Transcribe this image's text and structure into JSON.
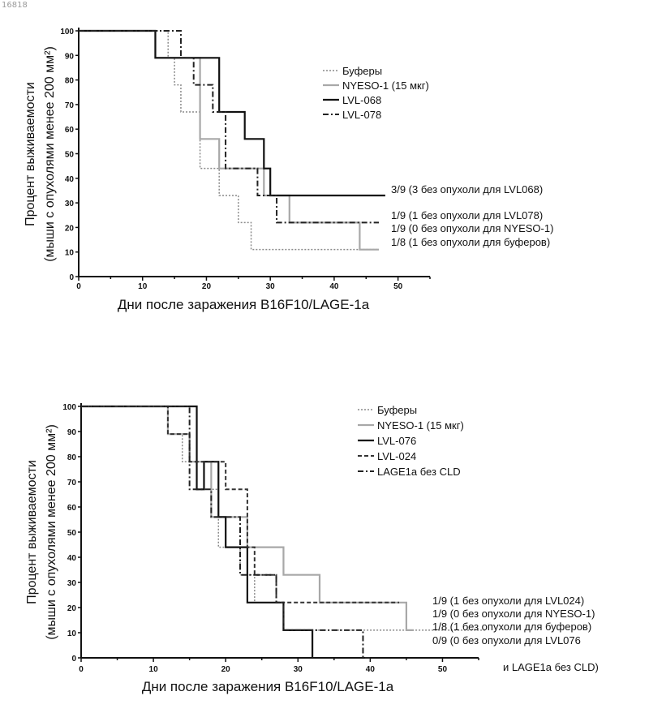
{
  "page_id": "16818",
  "colors": {
    "ink": "#111111",
    "gray": "#8a8a8a",
    "light": "#a8a8a8"
  },
  "chart_data": [
    {
      "type": "line",
      "step": true,
      "title": "",
      "xlabel": "Дни после заражения B16F10/LAGE-1a",
      "ylabel": "Процент выживаемости",
      "ylabel2": "(мыши с опухолями менее 200 мм²)",
      "xlim": [
        0,
        55
      ],
      "ylim": [
        0,
        100
      ],
      "xticks": [
        "0",
        "10",
        "20",
        "30",
        "40",
        "50"
      ],
      "yticks": [
        "0",
        "10",
        "20",
        "30",
        "40",
        "50",
        "60",
        "70",
        "80",
        "90",
        "100"
      ],
      "legend_position": "top-right",
      "series": [
        {
          "name": "Буферы",
          "style": "dotted",
          "color": "#8a8a8a",
          "x": [
            0,
            14,
            15,
            16,
            19,
            22,
            25,
            27,
            47
          ],
          "y": [
            100,
            89,
            78,
            67,
            44,
            33,
            22,
            11,
            11
          ]
        },
        {
          "name": "NYESO-1 (15 мкг)",
          "style": "solid-gray",
          "color": "#a8a8a8",
          "x": [
            0,
            12,
            19,
            22,
            29,
            33,
            44,
            47
          ],
          "y": [
            100,
            89,
            56,
            44,
            33,
            22,
            11,
            11
          ]
        },
        {
          "name": "LVL-068",
          "style": "solid",
          "color": "#111111",
          "x": [
            0,
            12,
            22,
            26,
            29,
            30,
            48
          ],
          "y": [
            100,
            89,
            67,
            56,
            44,
            33,
            33
          ]
        },
        {
          "name": "LVL-078",
          "style": "dashdot",
          "color": "#333333",
          "x": [
            0,
            16,
            18,
            21,
            23,
            28,
            31,
            47
          ],
          "y": [
            100,
            89,
            78,
            67,
            44,
            33,
            22,
            22
          ]
        }
      ],
      "end_labels": [
        "3/9 (3 без опухоли для LVL068)",
        "1/9 (1 без опухоли для LVL078)",
        "1/9 (0 без опухоли для NYESO-1)",
        "1/8 (1 без опухоли для буферов)"
      ]
    },
    {
      "type": "line",
      "step": true,
      "title": "",
      "xlabel": "Дни после заражения B16F10/LAGE-1a",
      "ylabel": "Процент выживаемости",
      "ylabel2": "(мыши с опухолями менее 200 мм²)",
      "xlim": [
        0,
        55
      ],
      "ylim": [
        0,
        100
      ],
      "xticks": [
        "0",
        "10",
        "20",
        "30",
        "40",
        "50"
      ],
      "yticks": [
        "0",
        "10",
        "20",
        "30",
        "40",
        "50",
        "60",
        "70",
        "80",
        "90",
        "100"
      ],
      "legend_position": "top-right",
      "series": [
        {
          "name": "Буферы",
          "style": "dotted",
          "color": "#8a8a8a",
          "x": [
            0,
            12,
            14,
            17,
            19,
            22,
            24,
            28,
            56
          ],
          "y": [
            100,
            89,
            78,
            67,
            44,
            33,
            22,
            11,
            11
          ]
        },
        {
          "name": "NYESO-1 (15 мкг)",
          "style": "solid-gray",
          "color": "#a8a8a8",
          "x": [
            0,
            12,
            15,
            18,
            23,
            28,
            33,
            45,
            46
          ],
          "y": [
            100,
            89,
            78,
            56,
            44,
            33,
            22,
            11,
            11
          ]
        },
        {
          "name": "LVL-076",
          "style": "solid",
          "color": "#111111",
          "x": [
            0,
            16,
            17,
            19,
            20,
            23,
            27,
            28,
            32
          ],
          "y": [
            100,
            67,
            78,
            56,
            44,
            22,
            22,
            11,
            0
          ]
        },
        {
          "name": "LVL-024",
          "style": "dashed",
          "color": "#333333",
          "x": [
            0,
            12,
            15,
            20,
            23,
            24,
            27,
            44
          ],
          "y": [
            100,
            89,
            78,
            67,
            44,
            33,
            22,
            22
          ]
        },
        {
          "name": "LAGE1a без CLD",
          "style": "dashdot",
          "color": "#222222",
          "x": [
            0,
            15,
            18,
            22,
            27,
            28,
            39,
            40
          ],
          "y": [
            100,
            67,
            56,
            33,
            22,
            11,
            0,
            0
          ]
        }
      ],
      "end_labels": [
        "1/9 (1 без опухоли для LVL024)",
        "1/9 (0 без опухоли для NYESO-1)",
        "1/8 (1 без опухоли для буферов)",
        "0/9 (0 без опухоли для LVL076",
        "и LAGE1a без CLD)"
      ]
    }
  ]
}
